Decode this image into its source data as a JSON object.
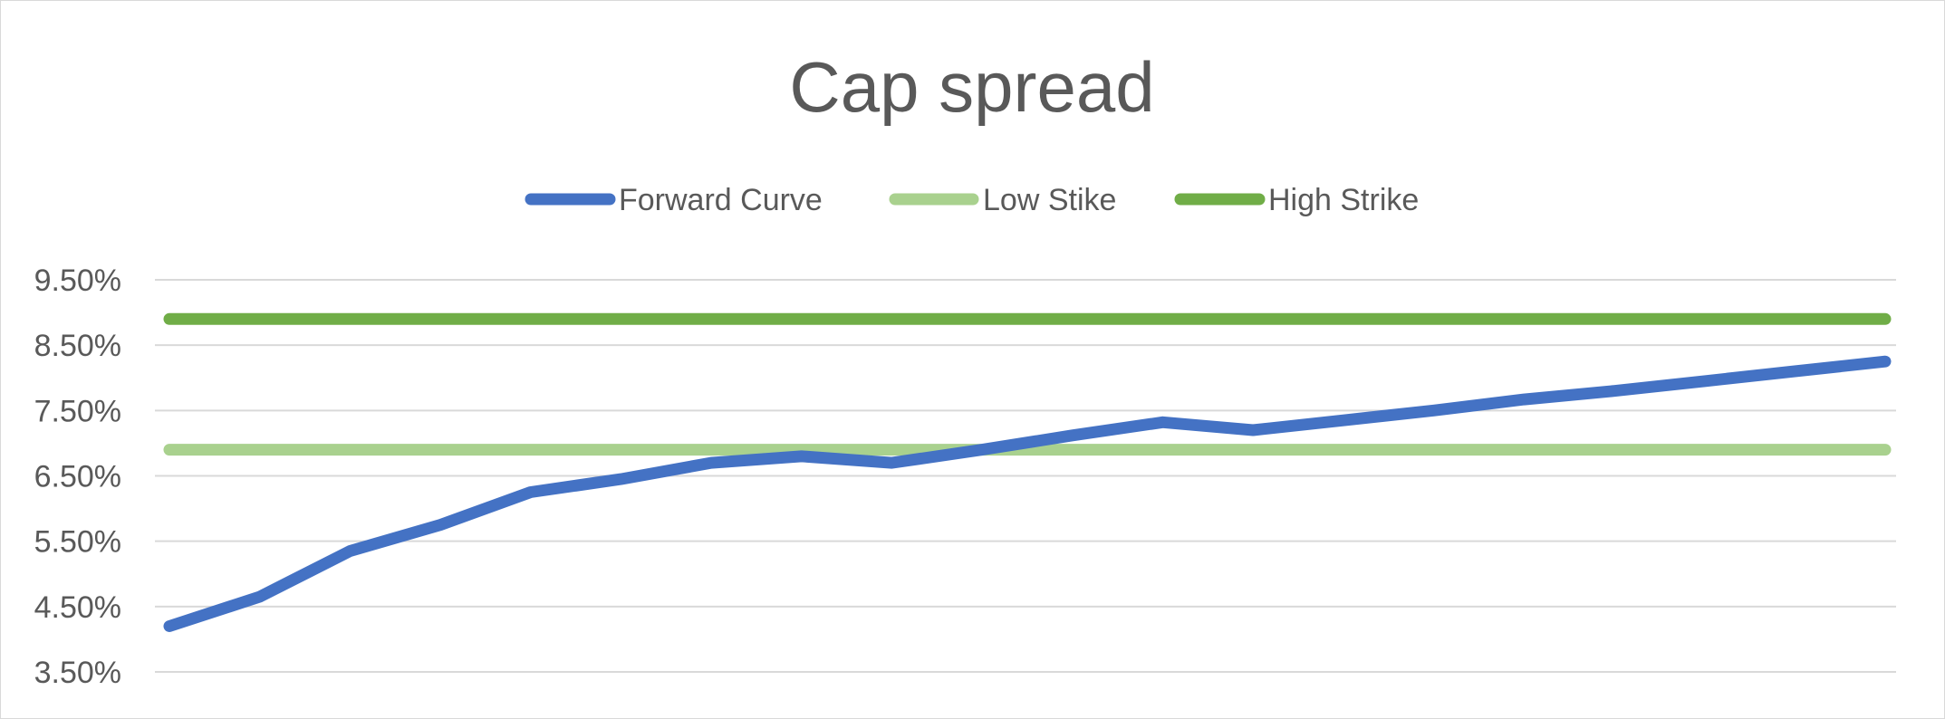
{
  "chart_data": {
    "type": "line",
    "title": "Cap spread",
    "xlabel": "",
    "ylabel": "",
    "ylim": [
      3.5,
      9.5
    ],
    "y_ticks": [
      "9.50%",
      "8.50%",
      "7.50%",
      "6.50%",
      "5.50%",
      "4.50%",
      "3.50%"
    ],
    "y_tick_values": [
      9.5,
      8.5,
      7.5,
      6.5,
      5.5,
      4.5,
      3.5
    ],
    "grid": true,
    "legend_position": "top",
    "x": [
      1,
      2,
      3,
      4,
      5,
      6,
      7,
      8,
      9,
      10,
      11,
      12,
      13,
      14,
      15,
      16,
      17,
      18,
      19,
      20
    ],
    "series": [
      {
        "name": "Forward Curve",
        "color": "#4472c4",
        "values": [
          4.2,
          4.65,
          5.35,
          5.75,
          6.25,
          6.45,
          6.7,
          6.8,
          6.7,
          6.9,
          7.12,
          7.32,
          7.2,
          7.35,
          7.5,
          7.67,
          7.8,
          7.95,
          8.1,
          8.25
        ]
      },
      {
        "name": "Low Stike",
        "color": "#a9d18e",
        "values": [
          6.9,
          6.9,
          6.9,
          6.9,
          6.9,
          6.9,
          6.9,
          6.9,
          6.9,
          6.9,
          6.9,
          6.9,
          6.9,
          6.9,
          6.9,
          6.9,
          6.9,
          6.9,
          6.9,
          6.9
        ]
      },
      {
        "name": "High Strike",
        "color": "#70ad47",
        "values": [
          8.9,
          8.9,
          8.9,
          8.9,
          8.9,
          8.9,
          8.9,
          8.9,
          8.9,
          8.9,
          8.9,
          8.9,
          8.9,
          8.9,
          8.9,
          8.9,
          8.9,
          8.9,
          8.9,
          8.9
        ]
      }
    ]
  }
}
